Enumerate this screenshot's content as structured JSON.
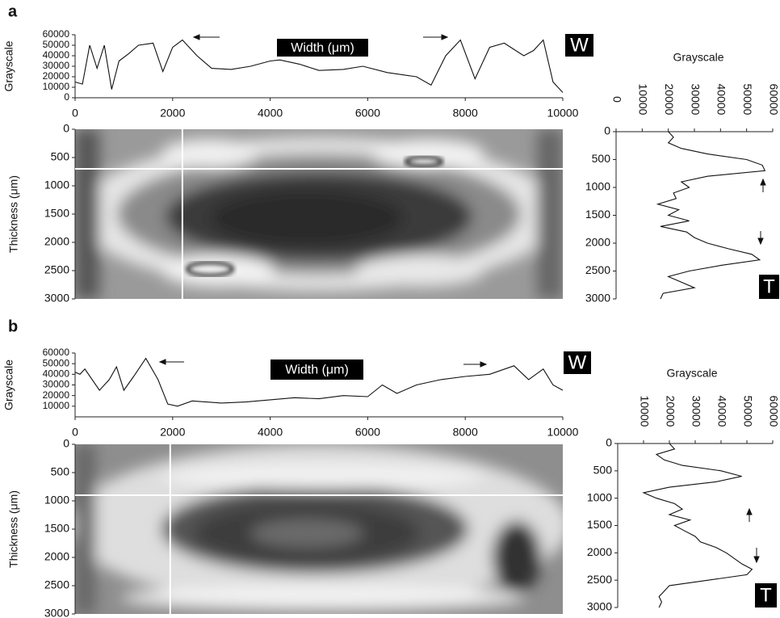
{
  "chart_data": [
    {
      "type": "line",
      "panel": "a",
      "ylabel": "Grayscale",
      "annotation": "Width (μm)",
      "badge": "W",
      "x": [
        0,
        150,
        300,
        450,
        600,
        750,
        900,
        1100,
        1300,
        1600,
        1800,
        2000,
        2200,
        2500,
        2800,
        3200,
        3600,
        4000,
        4200,
        4600,
        5000,
        5500,
        5900,
        6400,
        7000,
        7300,
        7600,
        7900,
        8200,
        8500,
        8800,
        9200,
        9400,
        9600,
        9800,
        10000
      ],
      "values": [
        15000,
        13000,
        50000,
        28000,
        50000,
        8000,
        35000,
        42000,
        50000,
        52000,
        25000,
        48000,
        55000,
        40000,
        28000,
        27000,
        30000,
        35000,
        36000,
        32000,
        26000,
        27000,
        30000,
        24000,
        20000,
        12000,
        40000,
        55000,
        18000,
        48000,
        52000,
        40000,
        45000,
        55000,
        15000,
        5000
      ],
      "xlim": [
        0,
        10000
      ],
      "xticks": [
        0,
        2000,
        4000,
        6000,
        8000,
        10000
      ],
      "ylim": [
        0,
        60000
      ],
      "yticks": [
        0,
        10000,
        20000,
        30000,
        40000,
        50000,
        60000
      ]
    },
    {
      "type": "image",
      "ylabel": "Thickness (μm)",
      "xlim": [
        0,
        10000
      ],
      "ylim": [
        0,
        3000
      ],
      "yticks": [
        0,
        500,
        1000,
        1500,
        2000,
        2500,
        3000
      ],
      "y_inverted": true,
      "sections": {
        "x": 2200,
        "y": 700
      }
    },
    {
      "type": "line",
      "orientation": "vertical",
      "xlabel": "Grayscale",
      "badge": "T",
      "y_inverted": true,
      "x": [
        0,
        100,
        200,
        300,
        400,
        500,
        600,
        700,
        800,
        900,
        1000,
        1100,
        1200,
        1300,
        1400,
        1500,
        1600,
        1700,
        1800,
        1900,
        2000,
        2100,
        2200,
        2300,
        2400,
        2500,
        2600,
        2700,
        2800,
        2900,
        3000
      ],
      "values": [
        20000,
        22000,
        20000,
        25000,
        35000,
        50000,
        56000,
        57000,
        35000,
        25000,
        28000,
        22000,
        23000,
        16000,
        24000,
        20000,
        28000,
        17000,
        27000,
        30000,
        35000,
        43000,
        52000,
        55000,
        40000,
        28000,
        20000,
        25000,
        30000,
        18000,
        17000
      ],
      "ylim": [
        0,
        3000
      ],
      "yticks": [
        0,
        500,
        1000,
        1500,
        2000,
        2500,
        3000
      ],
      "xlim": [
        0,
        60000
      ],
      "xticks": [
        0,
        10000,
        20000,
        30000,
        40000,
        50000,
        60000
      ]
    },
    {
      "type": "line",
      "panel": "b",
      "ylabel": "Grayscale",
      "annotation": "Width (μm)",
      "badge": "W",
      "x": [
        0,
        100,
        200,
        500,
        700,
        850,
        1000,
        1200,
        1450,
        1700,
        1900,
        2100,
        2400,
        3000,
        3500,
        4000,
        4500,
        5000,
        5500,
        6000,
        6300,
        6600,
        7000,
        7500,
        8000,
        8500,
        9000,
        9300,
        9600,
        9800,
        10000
      ],
      "values": [
        42000,
        40000,
        45000,
        25000,
        35000,
        47000,
        25000,
        38000,
        55000,
        35000,
        12000,
        10000,
        15000,
        13000,
        14000,
        16000,
        18000,
        17000,
        20000,
        19000,
        30000,
        22000,
        30000,
        35000,
        38000,
        40000,
        48000,
        35000,
        45000,
        30000,
        25000
      ],
      "xlim": [
        0,
        10000
      ],
      "xticks": [
        0,
        2000,
        4000,
        6000,
        8000,
        10000
      ],
      "ylim": [
        0,
        60000
      ],
      "yticks": [
        10000,
        20000,
        30000,
        40000,
        50000,
        60000
      ]
    },
    {
      "type": "image",
      "ylabel": "Thickness (μm)",
      "xlim": [
        0,
        10000
      ],
      "ylim": [
        0,
        3000
      ],
      "yticks": [
        0,
        500,
        1000,
        1500,
        2000,
        2500,
        3000
      ],
      "y_inverted": true,
      "sections": {
        "x": 1950,
        "y": 900
      }
    },
    {
      "type": "line",
      "orientation": "vertical",
      "xlabel": "Grayscale",
      "badge": "T",
      "y_inverted": true,
      "x": [
        0,
        100,
        200,
        300,
        400,
        500,
        600,
        700,
        800,
        900,
        1000,
        1100,
        1200,
        1300,
        1400,
        1500,
        1600,
        1700,
        1800,
        1900,
        2000,
        2100,
        2200,
        2300,
        2400,
        2500,
        2600,
        2700,
        2800,
        2900,
        3000
      ],
      "values": [
        20000,
        22000,
        15000,
        18000,
        25000,
        40000,
        48000,
        38000,
        20000,
        10000,
        15000,
        22000,
        25000,
        20000,
        28000,
        22000,
        26000,
        30000,
        32000,
        38000,
        42000,
        45000,
        48000,
        52000,
        50000,
        35000,
        20000,
        18000,
        16000,
        17000,
        16000
      ],
      "ylim": [
        0,
        3000
      ],
      "yticks": [
        0,
        500,
        1000,
        1500,
        2000,
        2500,
        3000
      ],
      "xlim": [
        0,
        60000
      ],
      "xticks": [
        10000,
        20000,
        30000,
        40000,
        50000,
        60000
      ]
    }
  ]
}
